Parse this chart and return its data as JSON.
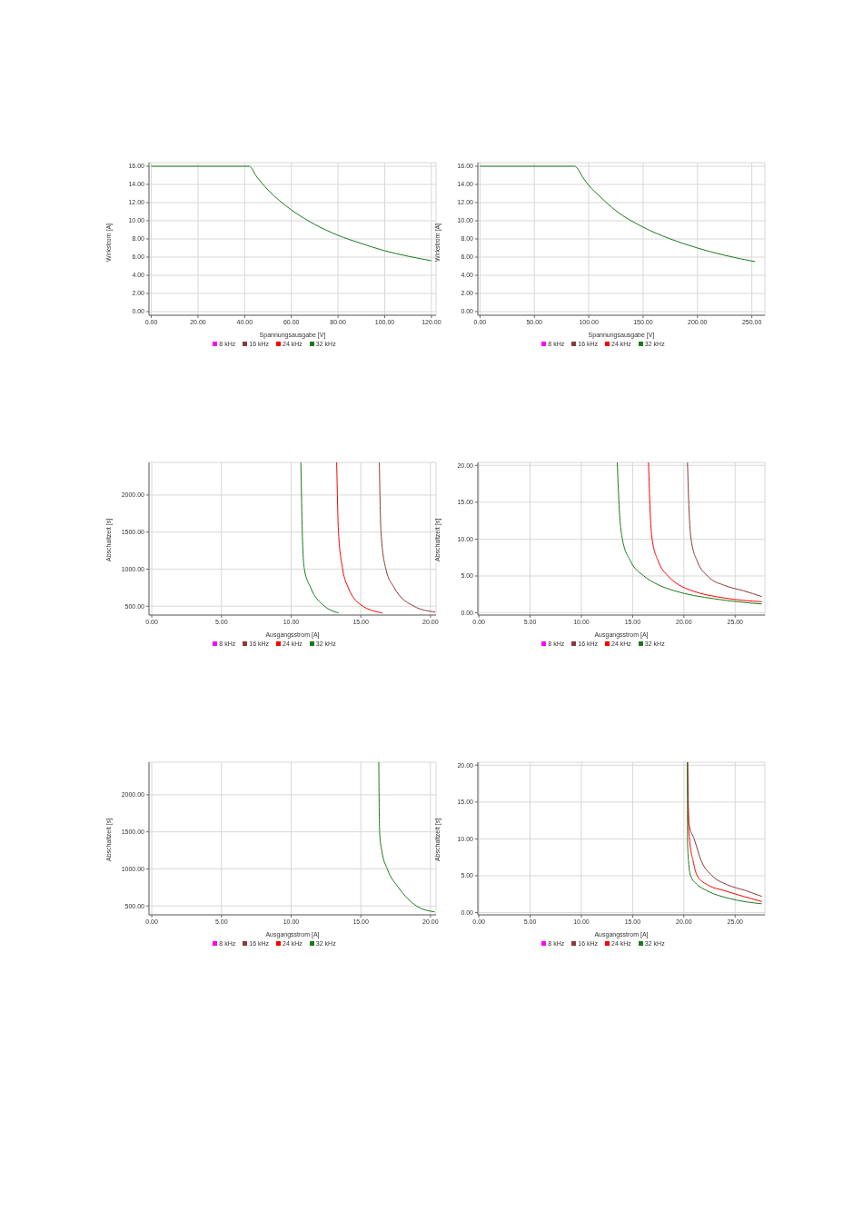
{
  "chart_data": [
    {
      "type": "line",
      "xlabel": "Spannungsausgabe [V]",
      "ylabel": "Wirkstrom [A]",
      "xlim": [
        -1,
        122
      ],
      "ylim": [
        -0.4,
        16.4
      ],
      "xticks": [
        {
          "value": 0,
          "label": "0.00"
        },
        {
          "value": 20,
          "label": "20.00"
        },
        {
          "value": 40,
          "label": "40.00"
        },
        {
          "value": 60,
          "label": "60.00"
        },
        {
          "value": 80,
          "label": "80.00"
        },
        {
          "value": 100,
          "label": "100.00"
        },
        {
          "value": 120,
          "label": "120.00"
        }
      ],
      "yticks": [
        {
          "value": 0,
          "label": "0.00"
        },
        {
          "value": 2,
          "label": "2.00"
        },
        {
          "value": 4,
          "label": "4.00"
        },
        {
          "value": 6,
          "label": "6.00"
        },
        {
          "value": 8,
          "label": "8.00"
        },
        {
          "value": 10,
          "label": "10.00"
        },
        {
          "value": 12,
          "label": "12.00"
        },
        {
          "value": 14,
          "label": "14.00"
        },
        {
          "value": 16,
          "label": "16.00"
        }
      ],
      "grid": true,
      "legend": "bottom",
      "marker": "none",
      "line_style": "solid",
      "series": [
        {
          "name": "8 kHz",
          "color": "#ff00ff"
        },
        {
          "name": "16 kHz",
          "color": "#8b3a3a"
        },
        {
          "name": "24 kHz",
          "color": "#ff0000"
        },
        {
          "name": "32 kHz",
          "color": "#1a7a1a",
          "x": [
            0,
            42,
            45,
            50,
            55,
            60,
            70,
            80,
            90,
            100,
            110,
            120
          ],
          "values": [
            16,
            16,
            14.9,
            13.4,
            12.2,
            11.2,
            9.6,
            8.4,
            7.5,
            6.7,
            6.1,
            5.6
          ]
        }
      ]
    },
    {
      "type": "line",
      "xlabel": "Spannungsausgabe [V]",
      "ylabel": "Wirkstrom [A]",
      "xlim": [
        -2,
        262
      ],
      "ylim": [
        -0.4,
        16.4
      ],
      "xticks": [
        {
          "value": 0,
          "label": "0.00"
        },
        {
          "value": 50,
          "label": "50.00"
        },
        {
          "value": 100,
          "label": "100.00"
        },
        {
          "value": 150,
          "label": "150.00"
        },
        {
          "value": 200,
          "label": "200.00"
        },
        {
          "value": 250,
          "label": "250.00"
        }
      ],
      "yticks": [
        {
          "value": 0,
          "label": "0.00"
        },
        {
          "value": 2,
          "label": "2.00"
        },
        {
          "value": 4,
          "label": "4.00"
        },
        {
          "value": 6,
          "label": "6.00"
        },
        {
          "value": 8,
          "label": "8.00"
        },
        {
          "value": 10,
          "label": "10.00"
        },
        {
          "value": 12,
          "label": "12.00"
        },
        {
          "value": 14,
          "label": "14.00"
        },
        {
          "value": 16,
          "label": "16.00"
        }
      ],
      "grid": true,
      "legend": "bottom",
      "marker": "none",
      "line_style": "solid",
      "series": [
        {
          "name": "8 kHz",
          "color": "#ff00ff"
        },
        {
          "name": "16 kHz",
          "color": "#8b3a3a"
        },
        {
          "name": "24 kHz",
          "color": "#ff0000"
        },
        {
          "name": "32 kHz",
          "color": "#1a7a1a",
          "x": [
            0,
            87,
            95,
            100,
            110,
            125,
            150,
            175,
            200,
            225,
            253
          ],
          "values": [
            16,
            16,
            14.7,
            13.9,
            12.7,
            11.1,
            9.3,
            8,
            7,
            6.2,
            5.5
          ]
        }
      ]
    },
    {
      "type": "line",
      "xlabel": "Ausgangsstrom [A]",
      "ylabel": "Abschaltzeit [s]",
      "xlim": [
        -0.2,
        20.4
      ],
      "ylim": [
        380,
        2440
      ],
      "xticks": [
        {
          "value": 0,
          "label": "0.00"
        },
        {
          "value": 5,
          "label": "5.00"
        },
        {
          "value": 10,
          "label": "10.00"
        },
        {
          "value": 15,
          "label": "15.00"
        },
        {
          "value": 20,
          "label": "20.00"
        }
      ],
      "yticks": [
        {
          "value": 500,
          "label": "500.00"
        },
        {
          "value": 1000,
          "label": "1000.00"
        },
        {
          "value": 1500,
          "label": "1500.00"
        },
        {
          "value": 2000,
          "label": "2000.00"
        }
      ],
      "grid": true,
      "legend": "bottom",
      "marker": "none",
      "line_style": "solid",
      "series": [
        {
          "name": "8 kHz",
          "color": "#ff00ff"
        },
        {
          "name": "16 kHz",
          "color": "#8b3a3a",
          "x": [
            16.33,
            16.45,
            16.8,
            17.4,
            18.8,
            20.35
          ],
          "values": [
            2440,
            1500,
            1000,
            750,
            500,
            420
          ]
        },
        {
          "name": "24 kHz",
          "color": "#ff0000",
          "x": [
            13.27,
            13.4,
            13.7,
            14.1,
            15.15,
            16.55
          ],
          "values": [
            2440,
            1500,
            1000,
            750,
            500,
            410
          ]
        },
        {
          "name": "32 kHz",
          "color": "#1a7a1a",
          "x": [
            10.7,
            10.8,
            10.95,
            11.4,
            12.4,
            13.4
          ],
          "values": [
            2440,
            1500,
            1000,
            750,
            500,
            410
          ]
        }
      ]
    },
    {
      "type": "line",
      "xlabel": "Ausgangsstrom [A]",
      "ylabel": "Abschaltzeit [s]",
      "xlim": [
        -0.1,
        27.9
      ],
      "ylim": [
        -0.3,
        20.4
      ],
      "xticks": [
        {
          "value": 0,
          "label": "0.00"
        },
        {
          "value": 5,
          "label": "5.00"
        },
        {
          "value": 10,
          "label": "10.00"
        },
        {
          "value": 15,
          "label": "15.00"
        },
        {
          "value": 20,
          "label": "20.00"
        },
        {
          "value": 25,
          "label": "25.00"
        }
      ],
      "yticks": [
        {
          "value": 0,
          "label": "0.00"
        },
        {
          "value": 5,
          "label": "5.00"
        },
        {
          "value": 10,
          "label": "10.00"
        },
        {
          "value": 15,
          "label": "15.00"
        },
        {
          "value": 20,
          "label": "20.00"
        }
      ],
      "grid": true,
      "legend": "bottom",
      "marker": "none",
      "line_style": "solid",
      "series": [
        {
          "name": "8 kHz",
          "color": "#ff00ff"
        },
        {
          "name": "16 kHz",
          "color": "#8b3a3a",
          "x": [
            20.35,
            20.5,
            20.7,
            21.3,
            22.3,
            24,
            25.8,
            27.6
          ],
          "values": [
            20.4,
            14,
            10,
            7,
            5,
            3.7,
            3,
            2.2
          ]
        },
        {
          "name": "24 kHz",
          "color": "#ff0000",
          "x": [
            16.55,
            16.7,
            16.9,
            17.5,
            18.45,
            19.5,
            20.8,
            24,
            27.6
          ],
          "values": [
            20.4,
            14,
            10,
            7,
            5,
            3.8,
            3,
            2,
            1.5
          ]
        },
        {
          "name": "32 kHz",
          "color": "#1a7a1a",
          "x": [
            13.5,
            13.7,
            14,
            14.8,
            16.1,
            17.5,
            19.05,
            23,
            27.6
          ],
          "values": [
            20.4,
            14,
            10,
            7,
            5,
            3.8,
            3,
            1.9,
            1.2
          ]
        }
      ]
    },
    {
      "type": "line",
      "xlabel": "Ausgangsstrom [A]",
      "ylabel": "Abschaltzeit [s]",
      "xlim": [
        -0.2,
        20.4
      ],
      "ylim": [
        380,
        2440
      ],
      "xticks": [
        {
          "value": 0,
          "label": "0.00"
        },
        {
          "value": 5,
          "label": "5.00"
        },
        {
          "value": 10,
          "label": "10.00"
        },
        {
          "value": 15,
          "label": "15.00"
        },
        {
          "value": 20,
          "label": "20.00"
        }
      ],
      "yticks": [
        {
          "value": 500,
          "label": "500.00"
        },
        {
          "value": 1000,
          "label": "1000.00"
        },
        {
          "value": 1500,
          "label": "1500.00"
        },
        {
          "value": 2000,
          "label": "2000.00"
        }
      ],
      "grid": true,
      "legend": "bottom",
      "marker": "none",
      "line_style": "solid",
      "series": [
        {
          "name": "8 kHz",
          "color": "#ff00ff"
        },
        {
          "name": "16 kHz",
          "color": "#8b3a3a"
        },
        {
          "name": "24 kHz",
          "color": "#ff0000"
        },
        {
          "name": "32 kHz",
          "color": "#1a7a1a",
          "x": [
            16.29,
            16.35,
            16.5,
            16.9,
            17.7,
            19,
            20.3
          ],
          "values": [
            2440,
            1500,
            1250,
            1000,
            750,
            500,
            420
          ]
        }
      ]
    },
    {
      "type": "line",
      "xlabel": "Ausgangsstrom [A]",
      "ylabel": "Abschaltzeit [s]",
      "xlim": [
        -0.1,
        27.9
      ],
      "ylim": [
        -0.3,
        20.4
      ],
      "xticks": [
        {
          "value": 0,
          "label": "0.00"
        },
        {
          "value": 5,
          "label": "5.00"
        },
        {
          "value": 10,
          "label": "10.00"
        },
        {
          "value": 15,
          "label": "15.00"
        },
        {
          "value": 20,
          "label": "20.00"
        },
        {
          "value": 25,
          "label": "25.00"
        }
      ],
      "yticks": [
        {
          "value": 0,
          "label": "0.00"
        },
        {
          "value": 5,
          "label": "5.00"
        },
        {
          "value": 10,
          "label": "10.00"
        },
        {
          "value": 15,
          "label": "15.00"
        },
        {
          "value": 20,
          "label": "20.00"
        }
      ],
      "grid": true,
      "legend": "bottom",
      "marker": "none",
      "line_style": "solid",
      "series": [
        {
          "name": "8 kHz",
          "color": "#ff00ff"
        },
        {
          "name": "16 kHz",
          "color": "#8b3a3a",
          "x": [
            20.35,
            20.5,
            21,
            21.7,
            22.75,
            24.2,
            26,
            27.6
          ],
          "values": [
            20.4,
            12,
            10,
            7,
            5,
            3.8,
            3,
            2.2
          ]
        },
        {
          "name": "24 kHz",
          "color": "#ff0000",
          "x": [
            20.35,
            20.45,
            20.55,
            20.9,
            21.3,
            22.4,
            23.9,
            27.6
          ],
          "values": [
            20.4,
            12,
            10,
            7,
            5,
            3.7,
            3,
            1.5
          ]
        },
        {
          "name": "32 kHz",
          "color": "#1a7a1a",
          "x": [
            20.35,
            20.35,
            20.35,
            20.45,
            20.65,
            21.3,
            22.2,
            24.5,
            27.6
          ],
          "values": [
            20.4,
            12,
            10,
            7,
            5,
            3.8,
            3,
            1.9,
            1.2
          ]
        }
      ]
    }
  ]
}
